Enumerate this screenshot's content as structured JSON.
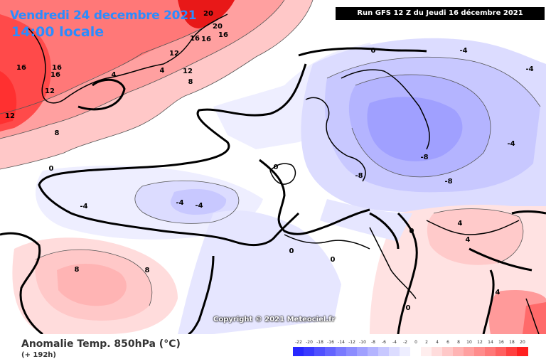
{
  "header": {
    "date": "Vendredi 24 decembre 2021",
    "time": "14:00 locale",
    "run": "Run GFS 12 Z du Jeudi 16 décembre 2021"
  },
  "copyright": "Copyright © 2021 Meteociel.fr",
  "footer": {
    "title": "Anomalie Temp. 850hPa (°C)",
    "subtitle": "(+ 192h)"
  },
  "legend": {
    "labels": [
      "-22",
      "-20",
      "-18",
      "-16",
      "-14",
      "-12",
      "-10",
      "-8",
      "-6",
      "-4",
      "-2",
      "0",
      "2",
      "4",
      "6",
      "8",
      "10",
      "12",
      "14",
      "16",
      "18",
      "20"
    ],
    "colors": [
      "#2828ff",
      "#3a3aff",
      "#5050ff",
      "#6464ff",
      "#7a7aff",
      "#8c8cff",
      "#a0a0ff",
      "#b4b4ff",
      "#c8c8ff",
      "#dcdcff",
      "#eeeeff",
      "#ffffff",
      "#ffeeee",
      "#ffdcdc",
      "#ffc8c8",
      "#ffb4b4",
      "#ffa0a0",
      "#ff8c8c",
      "#ff7878",
      "#ff6060",
      "#ff4040",
      "#ff2020"
    ]
  }
}
